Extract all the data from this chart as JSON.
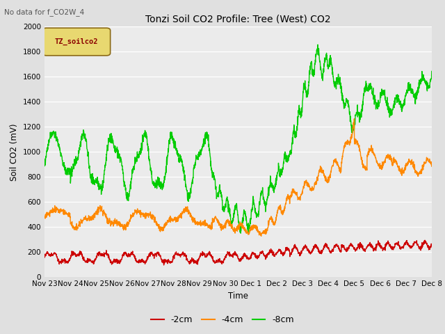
{
  "title": "Tonzi Soil CO2 Profile: Tree (West) CO2",
  "subtitle": "No data for f_CO2W_4",
  "xlabel": "Time",
  "ylabel": "Soil CO2 (mV)",
  "ylim": [
    0,
    2000
  ],
  "bg_color": "#e0e0e0",
  "plot_bg_color": "#ebebeb",
  "legend_label_2cm": "-2cm",
  "legend_label_4cm": "-4cm",
  "legend_label_8cm": "-8cm",
  "color_2cm": "#cc0000",
  "color_4cm": "#ff8800",
  "color_8cm": "#00cc00",
  "legend_box_edge": "#8B6914",
  "legend_box_face": "#e8d870",
  "legend_text": "TZ_soilco2",
  "legend_text_color": "#8B0000",
  "xtick_labels": [
    "Nov 23",
    "Nov 24",
    "Nov 25",
    "Nov 26",
    "Nov 27",
    "Nov 28",
    "Nov 29",
    "Nov 30",
    "Dec 1",
    "Dec 2",
    "Dec 3",
    "Dec 4",
    "Dec 5",
    "Dec 6",
    "Dec 7",
    "Dec 8"
  ],
  "ytick_vals": [
    0,
    200,
    400,
    600,
    800,
    1000,
    1200,
    1400,
    1600,
    1800,
    2000
  ],
  "n_points": 2000,
  "linewidth": 1.0
}
